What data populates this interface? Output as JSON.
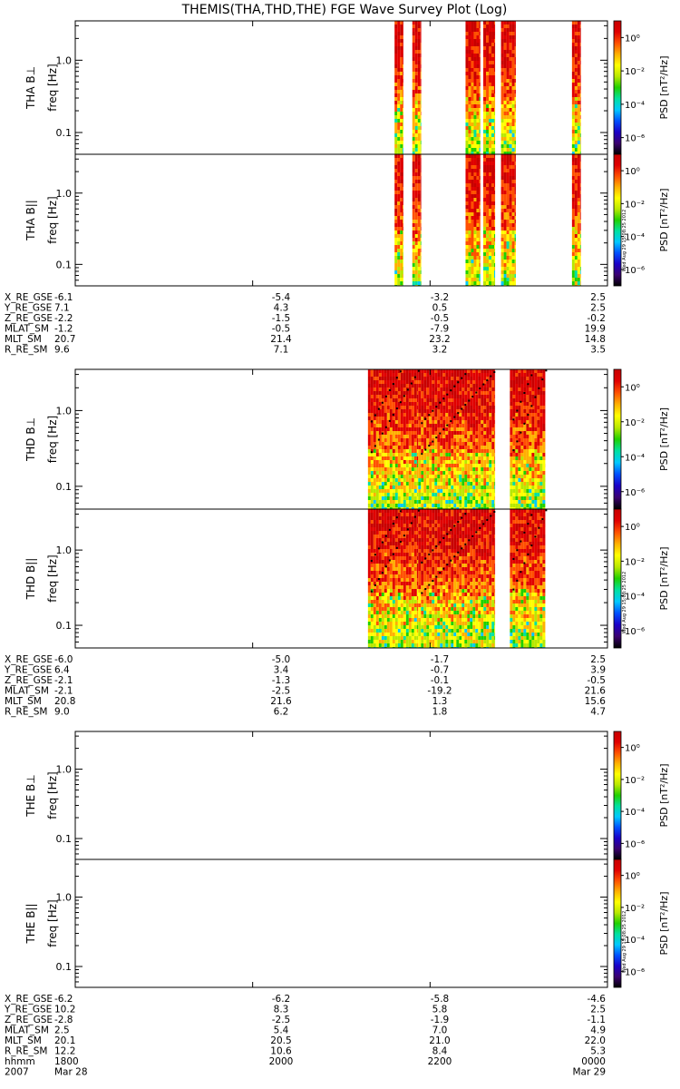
{
  "title": "THEMIS(THA,THD,THE) FGE Wave Survey Plot (Log)",
  "colors": {
    "axis": "#000000",
    "background": "#ffffff",
    "trace": "#000000",
    "scale": [
      "#000000",
      "#3b0070",
      "#1b00c8",
      "#0050ff",
      "#00c8ff",
      "#00e0a0",
      "#20d000",
      "#b8e800",
      "#ffff00",
      "#ffb000",
      "#ff5000",
      "#e00000",
      "#c80000"
    ]
  },
  "freq_ticks": [
    "1.0",
    "0.1"
  ],
  "colorbar": {
    "unit_label": "PSD [nT²/Hz]",
    "tick_labels": [
      "10⁰",
      "10⁻²",
      "10⁻⁴",
      "10⁻⁶"
    ],
    "tick_exponents": [
      0,
      -2,
      -4,
      -6
    ],
    "range_exponents": [
      -7,
      1
    ]
  },
  "timestamp_stamp": "Wed Aug 29 15:08:25 2012",
  "chart_data": {
    "type": "heatmap",
    "title": "THEMIS(THA,THD,THE) FGE Wave Survey Plot (Log)",
    "x_axis": {
      "unit": "hhmm",
      "range_hhmm": [
        "1800",
        "0000"
      ],
      "tick_labels": [
        "1800",
        "2000",
        "2200",
        "0000"
      ],
      "date_label": "2007",
      "start_date": "Mar 28",
      "end_date": "Mar 29"
    },
    "y_axis": {
      "label": "freq [Hz]",
      "scale": "log",
      "range": [
        0.05,
        3.5
      ],
      "tick_labels": [
        "1.0",
        "0.1"
      ]
    },
    "probes": [
      {
        "id": "THA",
        "panels": [
          {
            "name": "THA B⊥",
            "ylabel": "freq [Hz]"
          },
          {
            "name": "THA B||",
            "ylabel": "freq [Hz]"
          }
        ],
        "data_intervals_hhmm": [
          [
            "2136",
            "2142"
          ],
          [
            "2148",
            "2154"
          ],
          [
            "2224",
            "2234"
          ],
          [
            "2236",
            "2244"
          ],
          [
            "2248",
            "2258"
          ],
          [
            "2336",
            "2342"
          ]
        ],
        "ephemeris": [
          {
            "label": "X_RE_GSE",
            "values": [
              "-6.1",
              "-5.4",
              "-3.2",
              "2.5"
            ]
          },
          {
            "label": "Y_RE_GSE",
            "values": [
              "7.1",
              "4.3",
              "0.5",
              "2.5"
            ]
          },
          {
            "label": "Z_RE_GSE",
            "values": [
              "-2.2",
              "-1.5",
              "-0.5",
              "-0.2"
            ]
          },
          {
            "label": "MLAT_SM",
            "values": [
              "-1.2",
              "-0.5",
              "-7.9",
              "19.9"
            ]
          },
          {
            "label": "MLT_SM",
            "values": [
              "20.7",
              "21.4",
              "23.2",
              "14.8"
            ]
          },
          {
            "label": "R_RE_SM",
            "values": [
              "9.6",
              "7.1",
              "3.2",
              "3.5"
            ]
          }
        ]
      },
      {
        "id": "THD",
        "panels": [
          {
            "name": "THD B⊥",
            "ylabel": "freq [Hz]"
          },
          {
            "name": "THD B||",
            "ylabel": "freq [Hz]"
          }
        ],
        "data_intervals_hhmm": [
          [
            "2118",
            "2152"
          ],
          [
            "2152",
            "2244"
          ],
          [
            "2254",
            "2318"
          ]
        ],
        "ephemeris": [
          {
            "label": "X_RE_GSE",
            "values": [
              "-6.0",
              "-5.0",
              "-1.7",
              "2.5"
            ]
          },
          {
            "label": "Y_RE_GSE",
            "values": [
              "6.4",
              "3.4",
              "-0.7",
              "3.9"
            ]
          },
          {
            "label": "Z_RE_GSE",
            "values": [
              "-2.1",
              "-1.3",
              "-0.1",
              "-0.5"
            ]
          },
          {
            "label": "MLAT_SM",
            "values": [
              "-2.1",
              "-2.5",
              "-19.2",
              "21.6"
            ]
          },
          {
            "label": "MLT_SM",
            "values": [
              "20.8",
              "21.6",
              "1.3",
              "15.6"
            ]
          },
          {
            "label": "R_RE_SM",
            "values": [
              "9.0",
              "6.2",
              "1.8",
              "4.7"
            ]
          }
        ]
      },
      {
        "id": "THE",
        "panels": [
          {
            "name": "THE B⊥",
            "ylabel": "freq [Hz]"
          },
          {
            "name": "THE B||",
            "ylabel": "freq [Hz]"
          }
        ],
        "data_intervals_hhmm": [],
        "ephemeris": [
          {
            "label": "X_RE_GSE",
            "values": [
              "-6.2",
              "-6.2",
              "-5.8",
              "-4.6"
            ]
          },
          {
            "label": "Y_RE_GSE",
            "values": [
              "10.2",
              "8.3",
              "5.8",
              "2.5"
            ]
          },
          {
            "label": "Z_RE_GSE",
            "values": [
              "-2.8",
              "-2.5",
              "-1.9",
              "-1.1"
            ]
          },
          {
            "label": "MLAT_SM",
            "values": [
              "2.5",
              "5.4",
              "7.0",
              "4.9"
            ]
          },
          {
            "label": "MLT_SM",
            "values": [
              "20.1",
              "20.5",
              "21.0",
              "22.0"
            ]
          },
          {
            "label": "R_RE_SM",
            "values": [
              "12.2",
              "10.6",
              "8.4",
              "5.3"
            ]
          }
        ]
      }
    ]
  }
}
